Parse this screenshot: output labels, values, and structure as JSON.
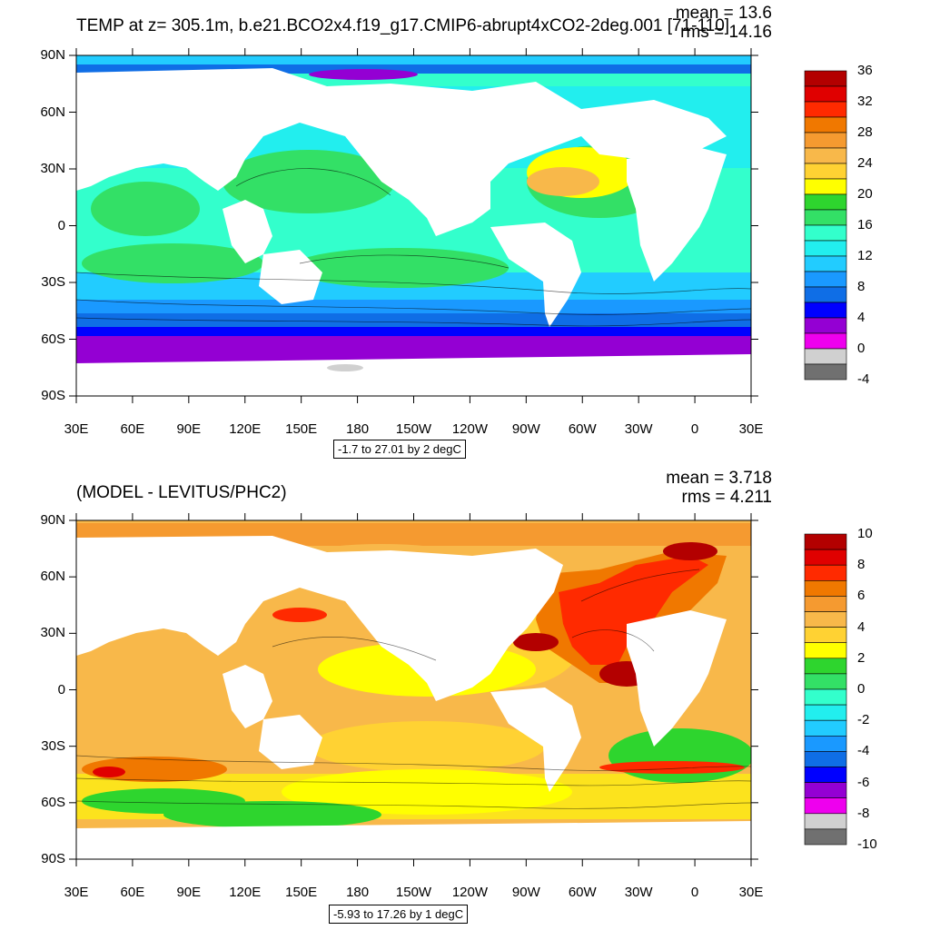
{
  "top": {
    "title": "TEMP at z= 305.1m, b.e21.BCO2x4.f19_g17.CMIP6-abrupt4xCO2-2deg.001 [71-110]",
    "mean": "mean = 13.6",
    "rms": "rms = 14.16",
    "range": "-1.7 to 27.01 by 2 degC",
    "colorbar_labels": [
      "36",
      "32",
      "28",
      "24",
      "20",
      "16",
      "12",
      "8",
      "4",
      "0",
      "-4"
    ],
    "colorbar_colors": [
      "#b30000",
      "#e00000",
      "#ff2a00",
      "#f07800",
      "#f59a30",
      "#f8b84a",
      "#ffd233",
      "#ffff00",
      "#2ed52e",
      "#33e066",
      "#33ffcc",
      "#22eeee",
      "#22ccff",
      "#1a99ff",
      "#0f6ee6",
      "#0000ff",
      "#9400d3",
      "#ee00ee",
      "#d0d0d0",
      "#707070"
    ]
  },
  "bottom": {
    "title": "(MODEL - LEVITUS/PHC2)",
    "mean": "mean = 3.718",
    "rms": "rms = 4.211",
    "range": "-5.93 to 17.26 by 1 degC",
    "colorbar_labels": [
      "10",
      "8",
      "6",
      "4",
      "2",
      "0",
      "-2",
      "-4",
      "-6",
      "-8",
      "-10"
    ],
    "colorbar_colors": [
      "#b30000",
      "#e00000",
      "#ff2a00",
      "#f07800",
      "#f59a30",
      "#f8b84a",
      "#ffd233",
      "#ffff00",
      "#2ed52e",
      "#33e066",
      "#33ffcc",
      "#22eeee",
      "#22ccff",
      "#1a99ff",
      "#0f6ee6",
      "#0000ff",
      "#9400d3",
      "#ee00ee",
      "#d0d0d0",
      "#707070"
    ]
  },
  "lat_labels": [
    "90N",
    "60N",
    "30N",
    "0",
    "30S",
    "60S",
    "90S"
  ],
  "lon_labels": [
    "30E",
    "60E",
    "90E",
    "120E",
    "150E",
    "180",
    "150W",
    "120W",
    "90W",
    "60W",
    "30W",
    "0",
    "30E"
  ]
}
